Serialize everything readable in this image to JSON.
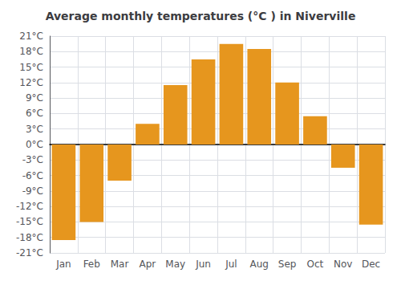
{
  "chart_data": {
    "type": "bar",
    "title": "Average monthly temperatures (°C ) in Niverville",
    "categories": [
      "Jan",
      "Feb",
      "Mar",
      "Apr",
      "May",
      "Jun",
      "Jul",
      "Aug",
      "Sep",
      "Oct",
      "Nov",
      "Dec"
    ],
    "values": [
      -18.5,
      -15.0,
      -7.0,
      4.0,
      11.5,
      16.5,
      19.5,
      18.5,
      12.0,
      5.5,
      -4.5,
      -15.5
    ],
    "color": "#E6961E",
    "ylim": [
      -21,
      21
    ],
    "yticks": [
      {
        "value": -21,
        "label": "-21°C"
      },
      {
        "value": -18,
        "label": "-18°C"
      },
      {
        "value": -15,
        "label": "-15°C"
      },
      {
        "value": -12,
        "label": "-12°C"
      },
      {
        "value": -9,
        "label": "-9°C"
      },
      {
        "value": -6,
        "label": "-6°C"
      },
      {
        "value": -3,
        "label": "-3°C"
      },
      {
        "value": 0,
        "label": "0°C"
      },
      {
        "value": 3,
        "label": "3°C"
      },
      {
        "value": 6,
        "label": "6°C"
      },
      {
        "value": 9,
        "label": "9°C"
      },
      {
        "value": 12,
        "label": "12°C"
      },
      {
        "value": 15,
        "label": "15°C"
      },
      {
        "value": 18,
        "label": "18°C"
      },
      {
        "value": 21,
        "label": "21°C"
      }
    ],
    "grid": true
  }
}
